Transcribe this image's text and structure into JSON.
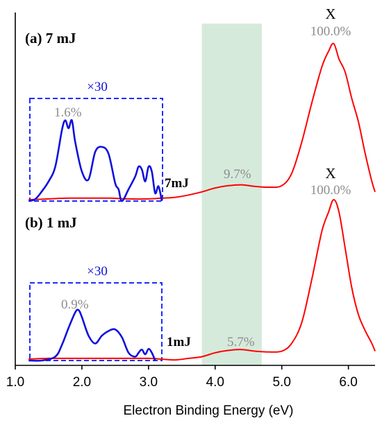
{
  "chart_data": {
    "type": "line",
    "xlabel": "Electron Binding Energy (eV)",
    "xlim": [
      1.0,
      6.4
    ],
    "xticks": [
      "1.0",
      "2.0",
      "3.0",
      "4.0",
      "5.0",
      "6.0"
    ],
    "shaded_band": {
      "x": [
        3.8,
        4.7
      ],
      "color": "#d6eadc"
    },
    "colors": {
      "spectrum": "#ff0000",
      "inset": "#1010dd",
      "annotation": "#8c8c8c",
      "box": "#1a2cff"
    },
    "panels": [
      {
        "label": "(a) 7 mJ",
        "trace_label": "7mJ",
        "peak_label": "X",
        "peak_percent": "100.0%",
        "band_percent": "9.7%",
        "inset_scale": "×30",
        "inset_percent": "1.6%",
        "spectrum": {
          "x": [
            1.2,
            1.5,
            1.8,
            2.1,
            2.4,
            2.7,
            3.0,
            3.2,
            3.4,
            3.6,
            3.8,
            4.0,
            4.2,
            4.4,
            4.6,
            4.8,
            5.0,
            5.15,
            5.3,
            5.45,
            5.6,
            5.7,
            5.78,
            5.86,
            5.95,
            6.05,
            6.15,
            6.25,
            6.35,
            6.4
          ],
          "y": [
            0.0,
            0.005,
            0.01,
            0.01,
            0.01,
            0.005,
            0.005,
            0.01,
            0.015,
            0.03,
            0.05,
            0.075,
            0.09,
            0.095,
            0.085,
            0.08,
            0.09,
            0.17,
            0.37,
            0.62,
            0.85,
            0.95,
            1.0,
            0.9,
            0.82,
            0.65,
            0.5,
            0.3,
            0.12,
            0.05
          ]
        },
        "inset": {
          "x": [
            1.2,
            1.3,
            1.4,
            1.5,
            1.6,
            1.7,
            1.75,
            1.8,
            1.85,
            1.9,
            2.0,
            2.1,
            2.2,
            2.3,
            2.4,
            2.5,
            2.55,
            2.6,
            2.7,
            2.8,
            2.85,
            2.9,
            2.95,
            3.0,
            3.05,
            3.1,
            3.15,
            3.2
          ],
          "y": [
            0.0,
            0.02,
            0.1,
            0.2,
            0.35,
            0.72,
            0.82,
            0.74,
            0.82,
            0.6,
            0.3,
            0.22,
            0.5,
            0.55,
            0.48,
            0.18,
            0.12,
            0.0,
            0.12,
            0.25,
            0.35,
            0.32,
            0.2,
            0.35,
            0.3,
            0.08,
            0.15,
            0.0
          ]
        }
      },
      {
        "label": "(b) 1 mJ",
        "trace_label": "1mJ",
        "peak_label": "X",
        "peak_percent": "100.0%",
        "band_percent": "5.7%",
        "inset_scale": "×30",
        "inset_percent": "0.9%",
        "spectrum": {
          "x": [
            1.2,
            1.5,
            1.8,
            2.1,
            2.4,
            2.7,
            3.0,
            3.2,
            3.4,
            3.6,
            3.8,
            4.0,
            4.2,
            4.4,
            4.6,
            4.8,
            5.0,
            5.15,
            5.3,
            5.45,
            5.6,
            5.7,
            5.78,
            5.86,
            5.95,
            6.05,
            6.15,
            6.25,
            6.35,
            6.4
          ],
          "y": [
            0.0,
            0.005,
            0.005,
            0.005,
            0.005,
            0.005,
            0.005,
            0.0,
            -0.005,
            0.005,
            0.015,
            0.04,
            0.055,
            0.06,
            0.05,
            0.045,
            0.05,
            0.1,
            0.23,
            0.5,
            0.8,
            0.92,
            1.0,
            0.92,
            0.7,
            0.45,
            0.28,
            0.18,
            0.1,
            0.05
          ]
        },
        "inset": {
          "x": [
            1.2,
            1.4,
            1.6,
            1.7,
            1.8,
            1.9,
            1.95,
            2.0,
            2.1,
            2.2,
            2.3,
            2.4,
            2.5,
            2.6,
            2.7,
            2.8,
            2.85,
            2.9,
            2.95,
            3.0,
            3.05,
            3.1
          ],
          "y": [
            0.0,
            0.0,
            0.05,
            0.2,
            0.42,
            0.62,
            0.65,
            0.56,
            0.32,
            0.22,
            0.32,
            0.38,
            0.4,
            0.3,
            0.1,
            0.05,
            0.1,
            0.14,
            0.08,
            0.15,
            0.1,
            0.0
          ]
        }
      }
    ]
  }
}
